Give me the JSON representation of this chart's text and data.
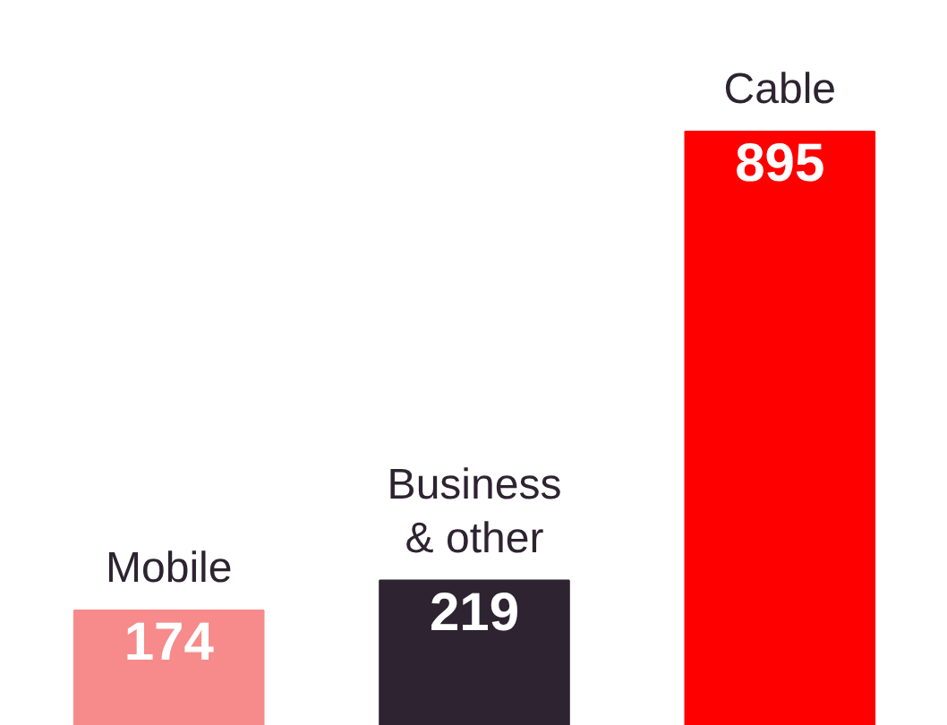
{
  "chart_data": {
    "type": "bar",
    "categories": [
      "Mobile",
      "Business & other",
      "Cable"
    ],
    "values": [
      174,
      219,
      895
    ],
    "colors": [
      "#f78a8a",
      "#2e2330",
      "#ff0000"
    ],
    "data_labels": true
  }
}
